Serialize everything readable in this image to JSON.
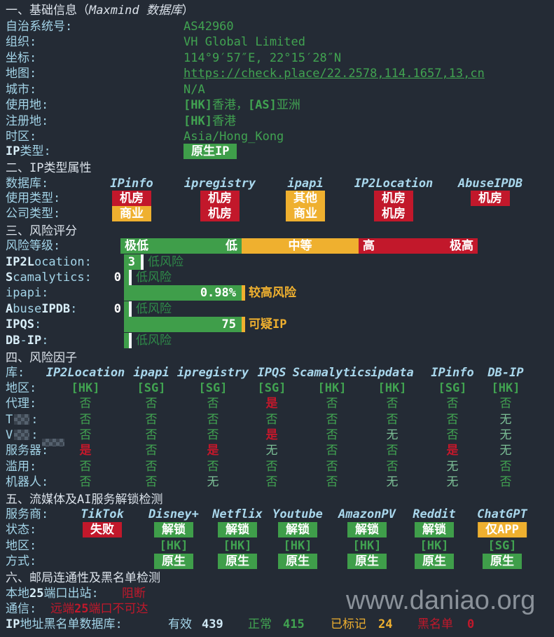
{
  "watermark": "www.daniao.org",
  "sections": {
    "basic": {
      "title": {
        "prefix": "一、基础信息（",
        "italic": "Maxmind 数据库",
        "suffix": "）"
      },
      "rows": [
        {
          "label": "自治系统号:",
          "value": "AS42960"
        },
        {
          "label": "组织:",
          "value": "VH Global Limited"
        },
        {
          "label": "坐标:",
          "value": "114°9′57″E, 22°15′28″N"
        },
        {
          "label": "地图:",
          "value": "https://check.place/22.2578,114.1657,13,cn",
          "link": true
        },
        {
          "label": "城市:",
          "value": "N/A"
        },
        {
          "label": "使用地:",
          "value": "[HK]香港，[AS]亚洲"
        },
        {
          "label": "注册地:",
          "value": "[HK]香港"
        },
        {
          "label": "时区:",
          "value": "Asia/Hong_Kong"
        },
        {
          "label": "IP类型:",
          "badge": {
            "text": "原生IP",
            "color": "green"
          }
        }
      ]
    },
    "ip_type": {
      "title": "二、IP类型属性",
      "header_label": "数据库:",
      "columns": [
        "IPinfo",
        "ipregistry",
        "ipapi",
        "IP2Location",
        "AbuseIPDB"
      ],
      "rows": [
        {
          "label": "使用类型:",
          "cells": [
            {
              "text": "机房",
              "color": "red"
            },
            {
              "text": "机房",
              "color": "red"
            },
            {
              "text": "其他",
              "color": "yellow"
            },
            {
              "text": "机房",
              "color": "red"
            },
            {
              "text": "机房",
              "color": "red"
            }
          ]
        },
        {
          "label": "公司类型:",
          "cells": [
            {
              "text": "商业",
              "color": "yellow"
            },
            {
              "text": "机房",
              "color": "red"
            },
            {
              "text": "商业",
              "color": "yellow"
            },
            {
              "text": "机房",
              "color": "red"
            },
            null
          ]
        }
      ]
    },
    "risk_score": {
      "title": "三、风险评分",
      "scale_label": "风险等级:",
      "scale": [
        {
          "left": "极低",
          "right": "低",
          "color": "green"
        },
        {
          "center": "中等",
          "color": "yellow"
        },
        {
          "left": "高",
          "right": "极高",
          "color": "red"
        }
      ],
      "rows": [
        {
          "label": "IP2Location:",
          "score": "3",
          "verdict": "低风险",
          "level": "low",
          "bar": 24,
          "score_pos": "in"
        },
        {
          "label": "Scamalytics:",
          "score": "0",
          "verdict": "低风险",
          "level": "low",
          "bar": 7,
          "score_pos": "out"
        },
        {
          "label": "ipapi:",
          "score": "0.98%",
          "verdict": "较高风险",
          "level": "mid",
          "bar": 168,
          "score_pos": "in"
        },
        {
          "label": "AbuseIPDB:",
          "score": "0",
          "verdict": "低风险",
          "level": "low",
          "bar": 7,
          "score_pos": "out"
        },
        {
          "label": "IPQS:",
          "score": "75",
          "verdict": "可疑IP",
          "level": "mid",
          "bar": 168,
          "score_pos": "in"
        },
        {
          "label": "DB-IP:",
          "score": "",
          "verdict": "低风险",
          "level": "low",
          "bar": 7,
          "score_pos": "none"
        }
      ]
    },
    "risk_factors": {
      "title": "四、风险因子",
      "header_label": "库:",
      "columns": [
        "IP2Location",
        "ipapi",
        "ipregistry",
        "IPQS",
        "Scamalytics",
        "ipdata",
        "IPinfo",
        "DB-IP"
      ],
      "rows": [
        {
          "label": "地区:",
          "values": [
            "[HK]",
            "[SG]",
            "[SG]",
            "[SG]",
            "[HK]",
            "[HK]",
            "[SG]",
            "[HK]"
          ]
        },
        {
          "label": "代理:",
          "values": [
            "否",
            "否",
            "否",
            "是",
            "否",
            "否",
            "否",
            "否"
          ]
        },
        {
          "label": "T",
          "suffix": ":",
          "censored": true,
          "values": [
            "否",
            "否",
            "否",
            "否",
            "否",
            "否",
            "否",
            "无"
          ]
        },
        {
          "label": "V",
          "suffix": ":",
          "censored": true,
          "values": [
            "否",
            "否",
            "否",
            "是",
            "否",
            "无",
            "否",
            "无"
          ]
        },
        {
          "label": "服务器:",
          "values": [
            "是",
            "否",
            "是",
            "无",
            "否",
            "否",
            "是",
            "无"
          ]
        },
        {
          "label": "滥用:",
          "values": [
            "否",
            "否",
            "否",
            "否",
            "否",
            "否",
            "无",
            "否"
          ]
        },
        {
          "label": "机器人:",
          "values": [
            "否",
            "否",
            "无",
            "否",
            "否",
            "无",
            "无",
            "否"
          ]
        }
      ]
    },
    "media": {
      "title": "五、流媒体及AI服务解锁检测",
      "header_label": "服务商:",
      "columns": [
        "TikTok",
        "Disney+",
        "Netflix",
        "Youtube",
        "AmazonPV",
        "Reddit",
        "ChatGPT"
      ],
      "status_label": "状态:",
      "status": [
        {
          "text": "失败",
          "color": "red"
        },
        {
          "text": "解锁",
          "color": "green"
        },
        {
          "text": "解锁",
          "color": "green"
        },
        {
          "text": "解锁",
          "color": "green"
        },
        {
          "text": "解锁",
          "color": "green"
        },
        {
          "text": "解锁",
          "color": "green"
        },
        {
          "text": "仅APP",
          "color": "yellow"
        }
      ],
      "region_label": "地区:",
      "regions": [
        "",
        "[HK]",
        "[HK]",
        "[HK]",
        "[HK]",
        "[HK]",
        "[SG]"
      ],
      "method_label": "方式:",
      "methods": [
        "",
        "原生",
        "原生",
        "原生",
        "原生",
        "原生",
        "原生"
      ]
    },
    "mail": {
      "title": "六、邮局连通性及黑名单检测",
      "port_label": "本地25端口出站:",
      "port_value": "阻断",
      "comm_label": "通信:",
      "comm_value": "远端25端口不可达",
      "blacklist_label": "IP地址黑名单数据库:",
      "stats": [
        {
          "name": "有效",
          "value": "439",
          "color": "blue"
        },
        {
          "name": "正常",
          "value": "415",
          "color": "green"
        },
        {
          "name": "已标记",
          "value": "24",
          "color": "yellow"
        },
        {
          "name": "黑名单",
          "value": "0",
          "color": "red"
        }
      ]
    }
  },
  "colors": {
    "background": "#242b35",
    "label_blue": "#a3d4e8",
    "value_green": "#41a351",
    "badge_green": "#3f9e4a",
    "badge_red": "#c2182b",
    "badge_yellow": "#efb02f",
    "na_green": "#7cbf96",
    "verdict_low": "#2f8b49"
  }
}
